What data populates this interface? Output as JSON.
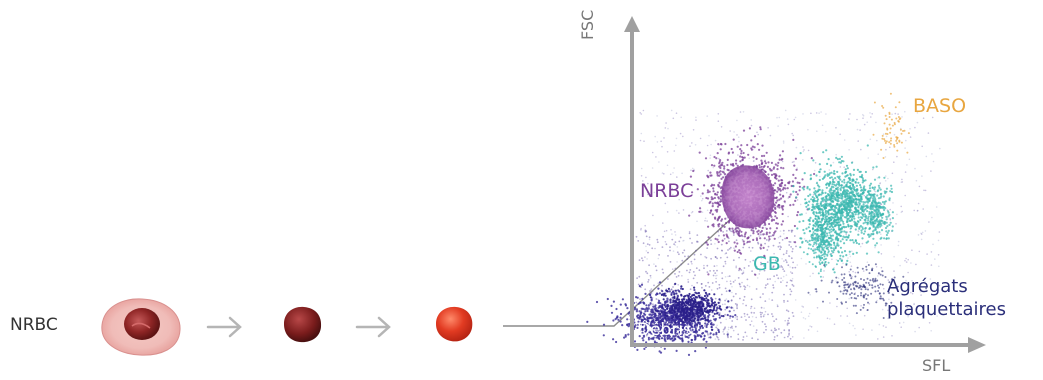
{
  "labels": {
    "nrbc_left": "NRBC",
    "nrbc_cluster": "NRBC",
    "gb": "GB",
    "baso": "BASO",
    "agregats_line1": "Agrégats",
    "agregats_line2": "plaquettaires",
    "debris": "Débris",
    "y_axis": "FSC",
    "x_axis": "SFL"
  },
  "colors": {
    "nrbc": "#7b3f98",
    "nrbc_core": "#c07ac9",
    "gb": "#3cb8b0",
    "baso": "#e8a640",
    "agregats": "#2b2f7a",
    "debris": "#3a2d9a",
    "axis": "#9a9a9a",
    "cell_dark": "#8b1f24",
    "cell_red": "#e03a24"
  },
  "icons": [
    "nucleated-red-cell-icon",
    "reticulocyte-icon",
    "red-blood-cell-icon"
  ]
}
